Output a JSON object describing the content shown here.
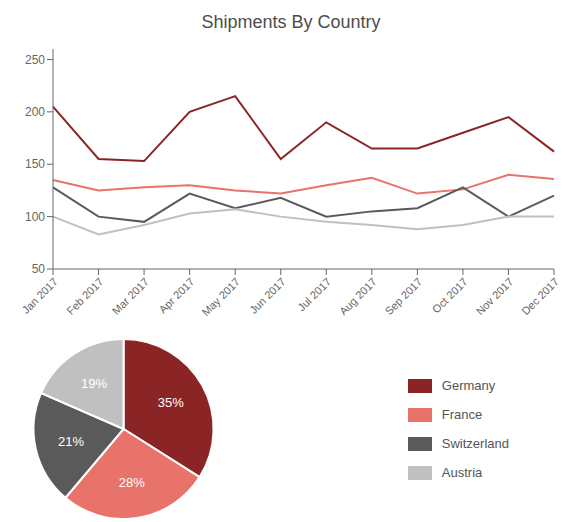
{
  "chart_data": [
    {
      "type": "line",
      "title": "Shipments By Country",
      "categories": [
        "Jan 2017",
        "Feb 2017",
        "Mar 2017",
        "Apr 2017",
        "May 2017",
        "Jun 2017",
        "Jul 2017",
        "Aug 2017",
        "Sep 2017",
        "Oct 2017",
        "Nov 2017",
        "Dec 2017"
      ],
      "series": [
        {
          "color": "#8b2525",
          "values": [
            205,
            155,
            153,
            200,
            215,
            155,
            190,
            165,
            165,
            180,
            195,
            162
          ]
        },
        {
          "color": "#e8736a",
          "values": [
            135,
            125,
            128,
            130,
            125,
            122,
            130,
            137,
            122,
            126,
            140,
            136
          ]
        },
        {
          "color": "#5a5a5a",
          "values": [
            128,
            100,
            95,
            122,
            108,
            118,
            100,
            105,
            108,
            128,
            100,
            120
          ]
        },
        {
          "color": "#c0c0c0",
          "values": [
            100,
            83,
            92,
            103,
            107,
            100,
            95,
            92,
            88,
            92,
            100,
            100
          ]
        }
      ],
      "ylim": [
        50,
        260
      ],
      "yticks": [
        50,
        100,
        150,
        200,
        250
      ],
      "grid": false
    },
    {
      "type": "pie",
      "categories": [
        "Germany",
        "France",
        "Switzerland",
        "Austria"
      ],
      "values": [
        35,
        28,
        21,
        19
      ],
      "value_labels": [
        "35%",
        "28%",
        "21%",
        "19%"
      ],
      "colors": [
        "#8b2525",
        "#e8736a",
        "#5a5a5a",
        "#c0c0c0"
      ],
      "data_labels": true,
      "legend": "right"
    }
  ]
}
